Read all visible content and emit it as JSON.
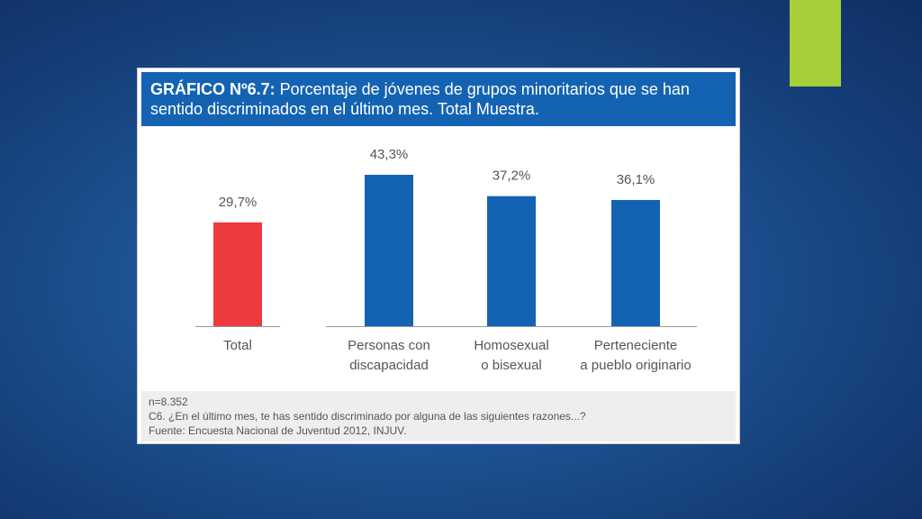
{
  "colors": {
    "accent_green": "#a6cf38",
    "header_blue": "#1463b3",
    "bar_blue": "#1463b3",
    "bar_red": "#ec3a3f"
  },
  "chart_data": {
    "type": "bar",
    "title_label": "GRÁFICO Nº6.7:",
    "title": "Porcentaje de jóvenes de grupos minoritarios que se han sentido discriminados en el último mes. Total Muestra.",
    "categories": [
      [
        "Total"
      ],
      [
        "Personas con",
        "discapacidad"
      ],
      [
        "Homosexual",
        "o bisexual"
      ],
      [
        "Perteneciente",
        "a pueblo originario"
      ]
    ],
    "values": [
      29.7,
      43.3,
      37.2,
      36.1
    ],
    "value_labels": [
      "29,7%",
      "43,3%",
      "37,2%",
      "36,1%"
    ],
    "bar_colors": [
      "#ec3a3f",
      "#1463b3",
      "#1463b3",
      "#1463b3"
    ],
    "ylim": [
      0,
      50
    ],
    "grid": false,
    "legend": "none"
  },
  "footer": {
    "sample": "n=8.352",
    "question": "C6. ¿En el último mes, te has sentido discriminado por alguna de las siguientes razones...?",
    "source": "Fuente: Encuesta Nacional de Juventud 2012, INJUV."
  }
}
